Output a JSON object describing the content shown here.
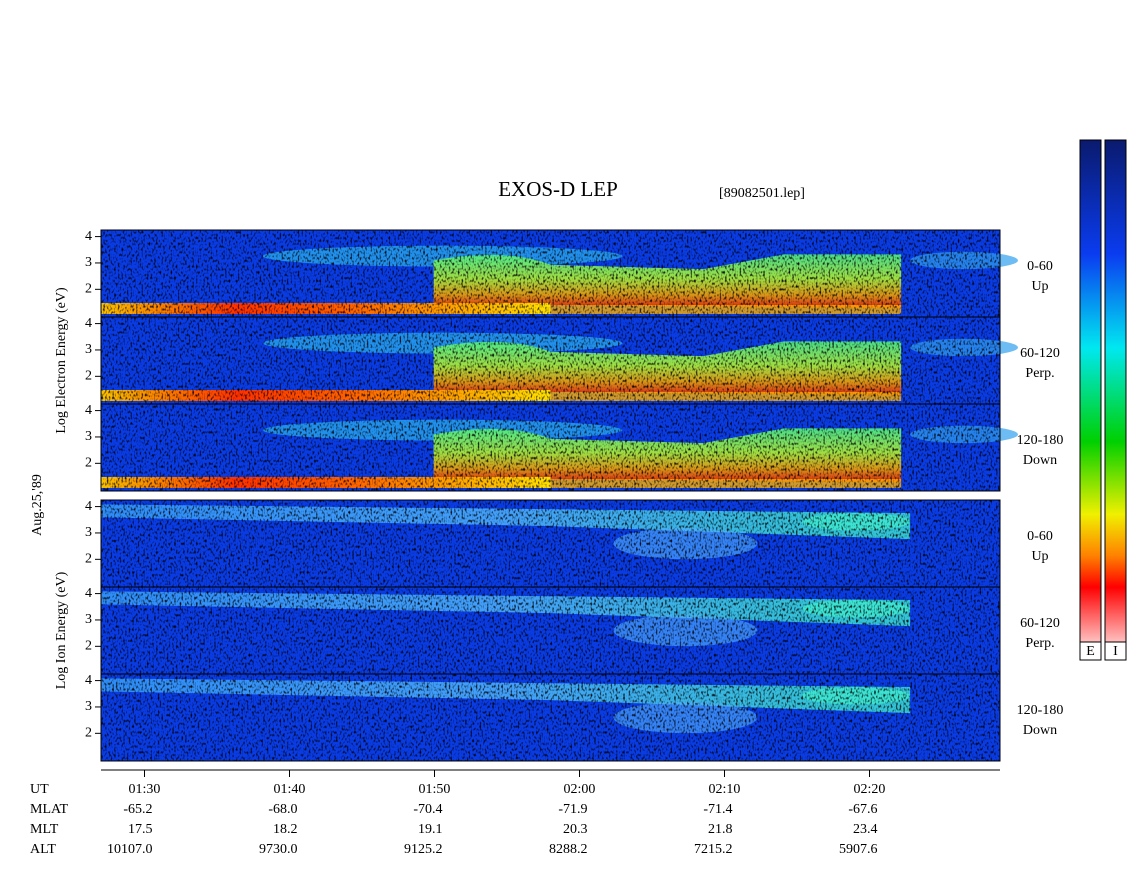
{
  "chart_data": {
    "type": "spectrogram",
    "title": "EXOS-D LEP",
    "subtitle": "[89082501.lep]",
    "date": "Aug.25,'89",
    "groups": [
      {
        "label": "Log Electron Energy (eV)",
        "panels": [
          {
            "label": [
              "0-60",
              "Up"
            ]
          },
          {
            "label": [
              "60-120",
              "Perp."
            ]
          },
          {
            "label": [
              "120-180",
              "Down"
            ]
          }
        ]
      },
      {
        "label": "Log Ion Energy (eV)",
        "panels": [
          {
            "label": [
              "0-60",
              "Up"
            ]
          },
          {
            "label": [
              "60-120",
              "Perp."
            ]
          },
          {
            "label": [
              "120-180",
              "Down"
            ]
          }
        ]
      }
    ],
    "ylim": [
      0.95,
      4.25
    ],
    "yticks": [
      2,
      3,
      4
    ],
    "xlim": [
      87,
      149
    ],
    "xticks": [
      {
        "value": 90,
        "label": "01:30"
      },
      {
        "value": 100,
        "label": "01:40"
      },
      {
        "value": 110,
        "label": "01:50"
      },
      {
        "value": 120,
        "label": "02:00"
      },
      {
        "value": 130,
        "label": "02:10"
      },
      {
        "value": 140,
        "label": "02:20"
      }
    ],
    "orbit": {
      "labels": [
        "UT",
        "MLAT",
        "MLT",
        "ALT"
      ],
      "rows": [
        [
          "-65.2",
          "-68.0",
          "-70.4",
          "-71.9",
          "-71.4",
          "-67.6"
        ],
        [
          "17.5",
          "18.2",
          "19.1",
          "20.3",
          "21.8",
          "23.4"
        ],
        [
          "10107.0",
          "9730.0",
          "9125.2",
          "8288.2",
          "7215.2",
          "5907.6"
        ]
      ]
    },
    "colorbar": {
      "labels": [
        "E",
        "I"
      ]
    }
  }
}
